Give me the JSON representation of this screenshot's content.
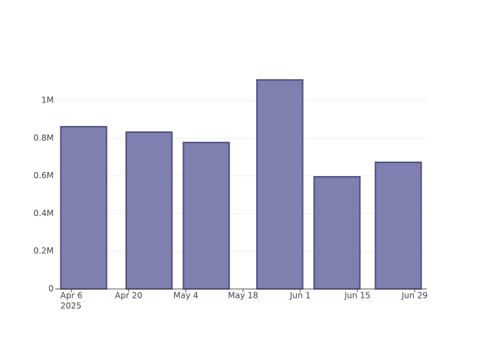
{
  "chart_data": {
    "type": "bar",
    "x": [
      "2025-04-09",
      "2025-04-25",
      "2025-05-09",
      "2025-05-27",
      "2025-06-10",
      "2025-06-25"
    ],
    "values": [
      861000,
      832000,
      777000,
      1109000,
      595000,
      672000
    ],
    "color": "#7f7fb0",
    "edge_color": "#4b4b80",
    "xlim": [
      "2025-04-02",
      "2025-07-02"
    ],
    "xticks": [
      {
        "value": "2025-04-06",
        "label": "Apr 6",
        "sublabel": "2025"
      },
      {
        "value": "2025-04-20",
        "label": "Apr 20"
      },
      {
        "value": "2025-05-04",
        "label": "May 4"
      },
      {
        "value": "2025-05-18",
        "label": "May 18"
      },
      {
        "value": "2025-06-01",
        "label": "Jun 1"
      },
      {
        "value": "2025-06-15",
        "label": "Jun 15"
      },
      {
        "value": "2025-06-29",
        "label": "Jun 29"
      }
    ],
    "ylim": [
      0,
      1168000
    ],
    "yticks": [
      0,
      {
        "value": 200000,
        "label": "0.2M"
      },
      {
        "value": 400000,
        "label": "0.4M"
      },
      {
        "value": 600000,
        "label": "0.6M"
      },
      {
        "value": 800000,
        "label": "0.8M"
      },
      {
        "value": 1000000,
        "label": "1M"
      }
    ],
    "grid": true
  }
}
